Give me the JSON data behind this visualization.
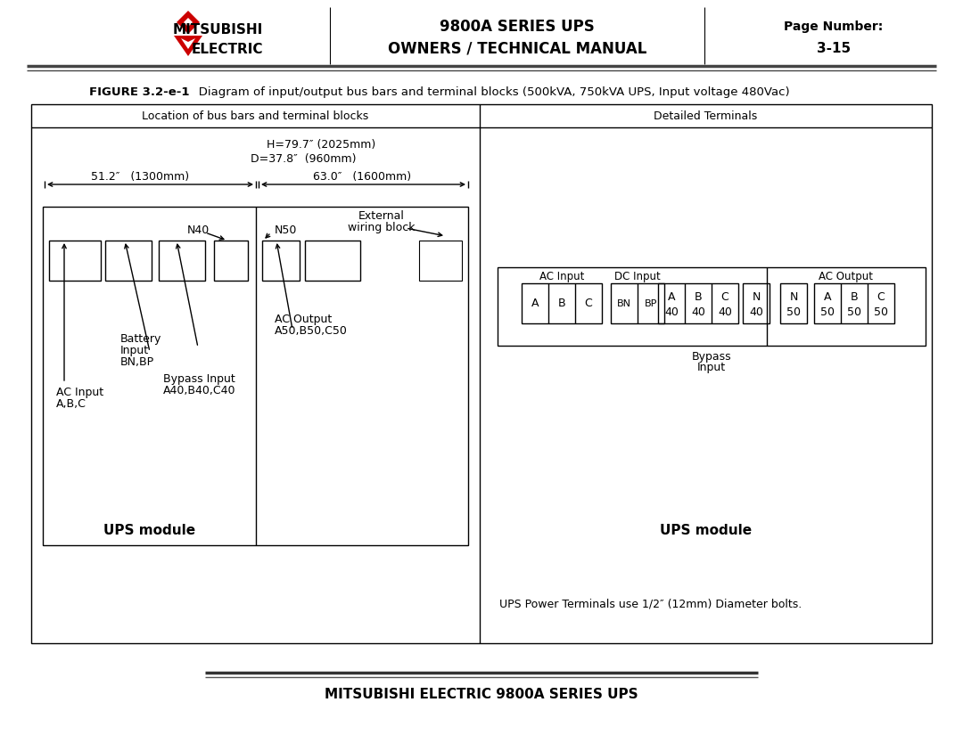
{
  "header": {
    "title_line1": "9800A SERIES UPS",
    "title_line2": "OWNERS / TECHNICAL MANUAL",
    "page_label": "Page Number:",
    "page_number": "3-15",
    "mitsubishi": "MITSUBISHI",
    "electric": "ELECTRIC"
  },
  "figure_caption_bold": "FIGURE 3.2-e-1",
  "figure_caption_rest": "   Diagram of input/output bus bars and terminal blocks (500kVA, 750kVA UPS, Input voltage 480Vac)",
  "footer_text": "MITSUBISHI ELECTRIC 9800A SERIES UPS",
  "left_panel_title": "Location of bus bars and terminal blocks",
  "right_panel_title": "Detailed Terminals",
  "dim_H": "H=79.7″ (2025mm)",
  "dim_D": "D=37.8″  (960mm)",
  "dim_left": "51.2″   (1300mm)",
  "dim_right": "63.0″   (1600mm)",
  "label_N40": "N40",
  "label_N50": "N50",
  "label_external": "External",
  "label_wiring": "wiring block",
  "label_battery": "Battery",
  "label_input": "Input",
  "label_bnbp": "BN,BP",
  "label_ac_input": "AC Input",
  "label_abc": "A,B,C",
  "label_bypass": "Bypass Input",
  "label_bypass2": "A40,B40,C40",
  "label_ac_output": "AC Output",
  "label_ac_output2": "A50,B50,C50",
  "label_ups_module": "UPS module",
  "bolt_text": "UPS Power Terminals use 1/2″ (12mm) Diameter bolts.",
  "colors": {
    "background": "#ffffff",
    "border": "#000000",
    "text": "#000000",
    "logo_red": "#cc0000"
  }
}
